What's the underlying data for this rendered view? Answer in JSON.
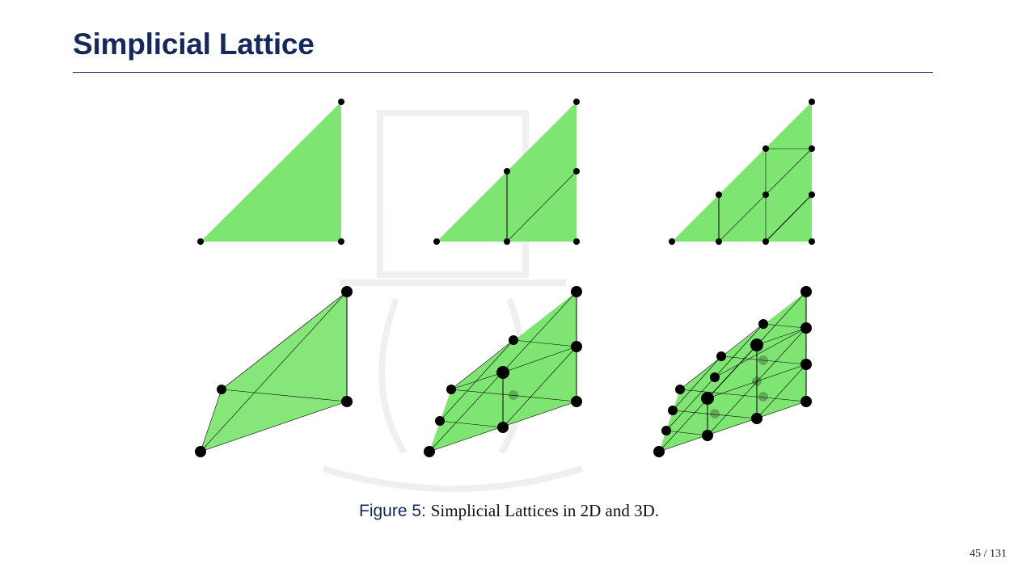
{
  "header": {
    "title": "Simplicial Lattice"
  },
  "figure": {
    "caption_label": "Figure 5:",
    "caption_text": "Simplicial Lattices in 2D and 3D.",
    "fill_color": "#7fe572",
    "panels_2d": [
      {
        "resolution": 1
      },
      {
        "resolution": 2
      },
      {
        "resolution": 3
      }
    ],
    "panels_3d": [
      {
        "resolution": 1
      },
      {
        "resolution": 2
      },
      {
        "resolution": 3
      }
    ]
  },
  "footer": {
    "page_number": "45 / 131"
  }
}
